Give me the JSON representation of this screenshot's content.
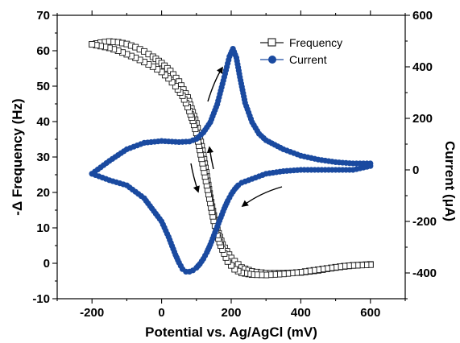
{
  "chart_data": {
    "type": "scatter",
    "title": "",
    "xlabel": "Potential vs. Ag/AgCl (mV)",
    "ylabel_left": "-Δ Frequency (Hz)",
    "ylabel_right": "Current (μA)",
    "xlim": [
      -300,
      700
    ],
    "ylim_left": [
      -10,
      70
    ],
    "ylim_right": [
      -500,
      600
    ],
    "x_ticks": [
      -200,
      0,
      200,
      400,
      600
    ],
    "y_left_ticks": [
      -10,
      0,
      10,
      20,
      30,
      40,
      50,
      60,
      70
    ],
    "y_right_ticks": [
      -400,
      -200,
      0,
      200,
      400,
      600
    ],
    "grid": false,
    "legend_position": "top-right",
    "series": [
      {
        "name": "Frequency",
        "axis": "left",
        "marker": "open-square",
        "color": "#1a1a1a",
        "segments": [
          {
            "x": [
              -200,
              -175,
              -150,
              -125,
              -100,
              -75,
              -50,
              -25,
              0,
              25,
              50,
              75,
              100,
              110,
              120,
              130,
              140,
              150,
              160,
              175,
              200,
              230,
              260,
              300,
              350,
              400,
              450,
              500,
              550,
              600
            ],
            "y": [
              61.8,
              62.3,
              62.6,
              62.4,
              61.9,
              61.0,
              59.8,
              58.3,
              56.5,
              54.3,
              51.3,
              46.8,
              39.5,
              35.5,
              30.5,
              24.5,
              18.5,
              13.5,
              9.5,
              5.3,
              1.5,
              -1.2,
              -2.3,
              -2.8,
              -2.8,
              -2.6,
              -2.0,
              -1.2,
              -0.6,
              -0.3
            ]
          },
          {
            "x": [
              600,
              575,
              550,
              525,
              500,
              450,
              400,
              350,
              300,
              260,
              230,
              210,
              190,
              170,
              160,
              150,
              140,
              130,
              120,
              110,
              100,
              90,
              80,
              70,
              60,
              40,
              20,
              0,
              -25,
              -50,
              -75,
              -100,
              -125,
              -150,
              -175,
              -200
            ],
            "y": [
              -0.4,
              -0.5,
              -0.6,
              -0.8,
              -1.1,
              -1.8,
              -2.5,
              -3.0,
              -3.3,
              -3.2,
              -2.7,
              -1.7,
              0.5,
              5.0,
              8.0,
              12.0,
              17.0,
              22.0,
              27.0,
              32.0,
              36.8,
              40.2,
              43.0,
              45.2,
              47.3,
              50.0,
              52.2,
              54.0,
              55.5,
              56.8,
              58.0,
              59.0,
              60.0,
              60.8,
              61.3,
              61.8
            ]
          }
        ]
      },
      {
        "name": "Current",
        "axis": "right",
        "marker": "filled-circle",
        "color": "#1a4aa0",
        "segments": [
          {
            "x": [
              -200,
              -150,
              -100,
              -50,
              0,
              50,
              80,
              100,
              120,
              140,
              160,
              180,
              195,
              205,
              215,
              225,
              240,
              260,
              280,
              300,
              350,
              400,
              450,
              500,
              550,
              580,
              600
            ],
            "y": [
              -15,
              35,
              80,
              105,
              112,
              108,
              110,
              120,
              145,
              185,
              255,
              360,
              440,
              470,
              435,
              360,
              260,
              185,
              140,
              115,
              80,
              55,
              40,
              30,
              25,
              25,
              25
            ]
          },
          {
            "x": [
              600,
              550,
              500,
              450,
              400,
              350,
              300,
              260,
              230,
              220,
              210,
              200,
              190,
              180,
              170,
              160,
              150,
              140,
              130,
              120,
              110,
              100,
              90,
              80,
              70,
              60,
              50,
              40,
              30,
              20,
              0,
              -50,
              -100,
              -150,
              -200
            ],
            "y": [
              15,
              0,
              0,
              0,
              0,
              -5,
              -15,
              -35,
              -50,
              -60,
              -75,
              -95,
              -120,
              -150,
              -185,
              -220,
              -255,
              -290,
              -320,
              -345,
              -365,
              -380,
              -390,
              -395,
              -395,
              -385,
              -360,
              -330,
              -295,
              -260,
              -200,
              -110,
              -60,
              -40,
              -15
            ]
          }
        ]
      }
    ],
    "annotations": [
      "arrow",
      "arrow",
      "arrow",
      "arrow"
    ]
  }
}
